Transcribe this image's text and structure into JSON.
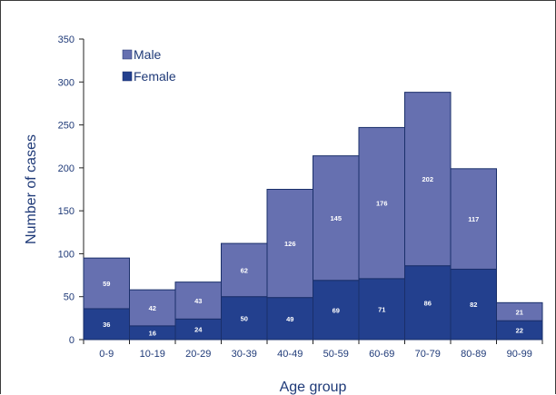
{
  "chart_data": {
    "type": "bar",
    "stacked": true,
    "categories": [
      "0-9",
      "10-19",
      "20-29",
      "30-39",
      "40-49",
      "50-59",
      "60-69",
      "70-79",
      "80-89",
      "90-99"
    ],
    "series": [
      {
        "name": "Female",
        "values": [
          36,
          16,
          24,
          50,
          49,
          69,
          71,
          86,
          82,
          22
        ],
        "color": "#23408e"
      },
      {
        "name": "Male",
        "values": [
          59,
          42,
          43,
          62,
          126,
          145,
          176,
          202,
          117,
          21
        ],
        "color": "#6670b0"
      }
    ],
    "xlabel": "Age group",
    "ylabel": "Number of cases",
    "ylim": [
      0,
      350
    ],
    "yticks": [
      0,
      50,
      100,
      150,
      200,
      250,
      300,
      350
    ],
    "grid": false,
    "legend_position": "top-left",
    "legend_order": [
      "Male",
      "Female"
    ],
    "colors": {
      "text": "#1f3a78",
      "axis": "#222222",
      "bar_edge": "#1a2f6a",
      "label": "#ffffff"
    }
  }
}
